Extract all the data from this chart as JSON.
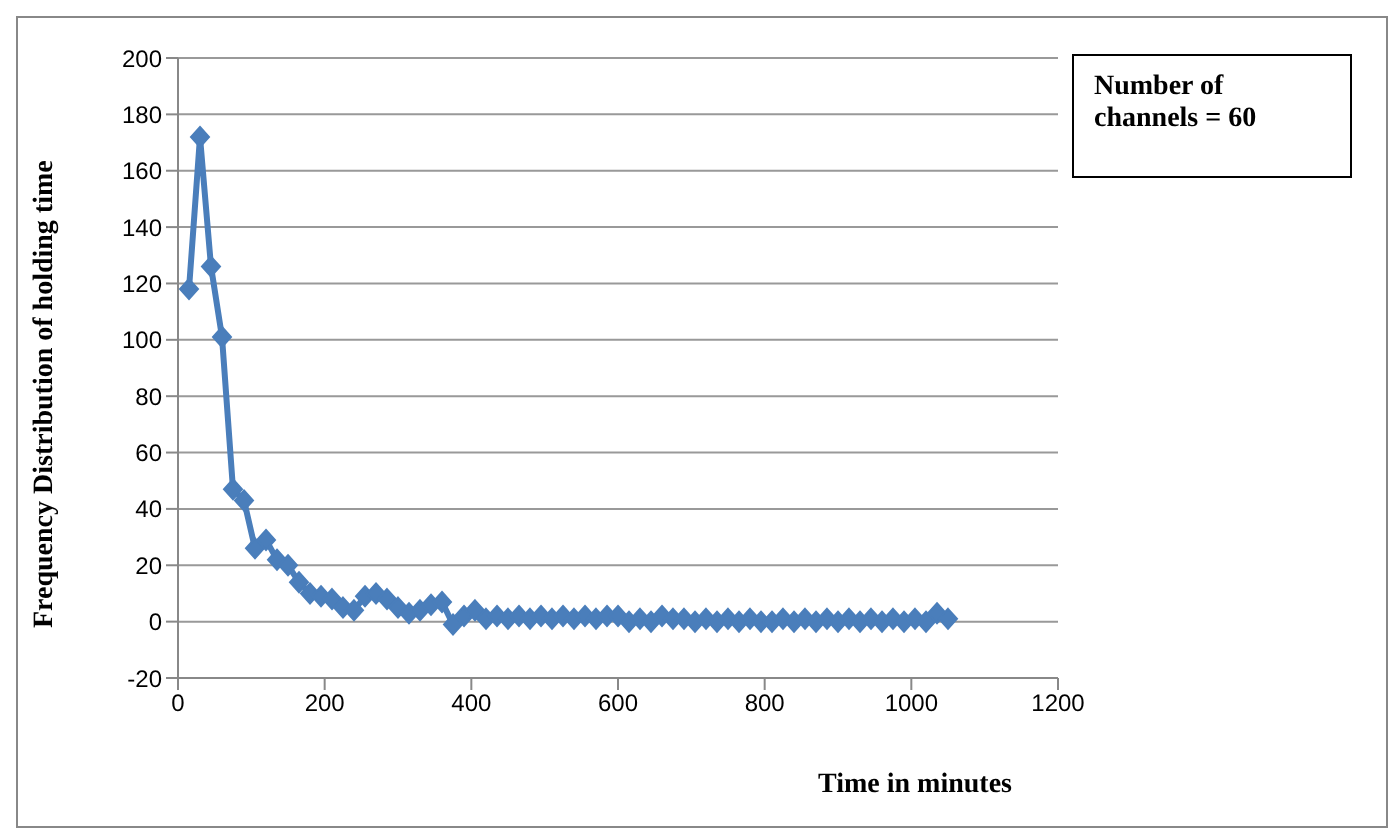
{
  "chart_data": {
    "type": "line",
    "xlabel": "Time in minutes",
    "ylabel": "Frequency Distribution of holding time",
    "annotations": [
      "Number of channels = 60"
    ],
    "x": [
      15,
      30,
      45,
      60,
      75,
      90,
      105,
      120,
      135,
      150,
      165,
      180,
      195,
      210,
      225,
      240,
      255,
      270,
      285,
      300,
      315,
      330,
      345,
      360,
      375,
      390,
      405,
      420,
      435,
      450,
      465,
      480,
      495,
      510,
      525,
      540,
      555,
      570,
      585,
      600,
      615,
      630,
      645,
      660,
      675,
      690,
      705,
      720,
      735,
      750,
      765,
      780,
      795,
      810,
      825,
      840,
      855,
      870,
      885,
      900,
      915,
      930,
      945,
      960,
      975,
      990,
      1005,
      1020,
      1035,
      1050
    ],
    "series": [
      {
        "color": "#4a7ebb",
        "values": [
          118,
          172,
          126,
          101,
          47,
          43,
          26,
          29,
          22,
          20,
          14,
          10,
          9,
          8,
          5,
          4,
          9,
          10,
          8,
          5,
          3,
          4,
          6,
          7,
          -1,
          2,
          4,
          1,
          2,
          1,
          2,
          1,
          2,
          1,
          2,
          1,
          2,
          1,
          2,
          2,
          0,
          1,
          0,
          2,
          1,
          1,
          0,
          1,
          0,
          1,
          0,
          1,
          0,
          0,
          1,
          0,
          1,
          0,
          1,
          0,
          1,
          0,
          1,
          0,
          1,
          0,
          1,
          0,
          3,
          1
        ]
      }
    ],
    "xlim": [
      0,
      1200
    ],
    "xticks": [
      0,
      200,
      400,
      600,
      800,
      1000,
      1200
    ],
    "ylim": [
      -20,
      200
    ],
    "yticks": [
      -20,
      0,
      20,
      40,
      60,
      80,
      100,
      120,
      140,
      160,
      180,
      200
    ],
    "grid": "y",
    "legend": false,
    "marker": "diamond",
    "line_style": "solid"
  }
}
